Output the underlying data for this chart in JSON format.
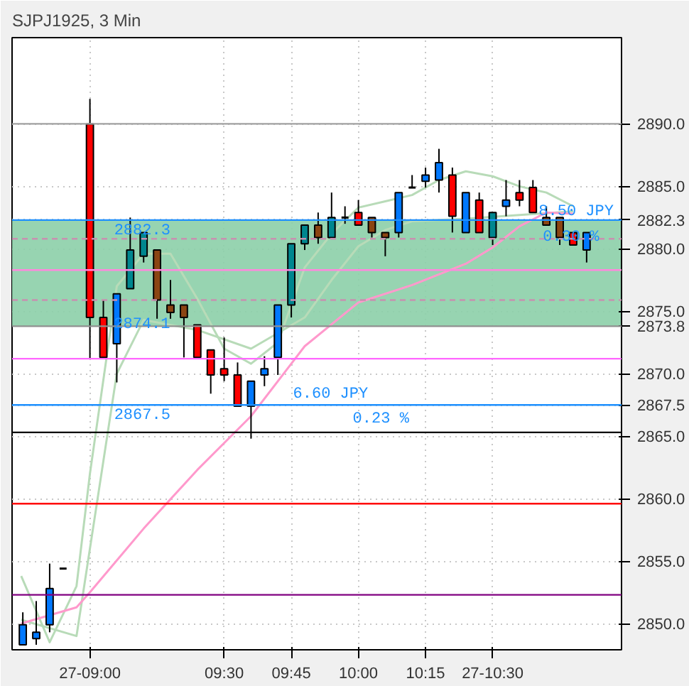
{
  "chart_data": {
    "type": "candlestick",
    "title": "SJPJ1925, 3 Min",
    "x": [
      8.75,
      8.8,
      8.85,
      8.9,
      9.0,
      9.05,
      9.1,
      9.15,
      9.2,
      9.25,
      9.3,
      9.35,
      9.4,
      9.45,
      9.5,
      9.55,
      9.6,
      9.65,
      9.7,
      9.75,
      9.8,
      9.85,
      9.9,
      9.95,
      10.0,
      10.05,
      10.1,
      10.15,
      10.2,
      10.25,
      10.3,
      10.35,
      10.4,
      10.45,
      10.5,
      10.55,
      10.6,
      10.65,
      10.7,
      10.75,
      10.8,
      10.85
    ],
    "ohlc": [
      [
        2848.3,
        2850.9,
        2848.3,
        2849.9
      ],
      [
        2848.8,
        2851.8,
        2848.3,
        2849.3
      ],
      [
        2849.9,
        2854.8,
        2849.3,
        2852.8
      ],
      [
        2854.4,
        2854.4,
        2854.4,
        2854.4
      ],
      [
        2890.0,
        2892.0,
        2871.2,
        2874.5
      ],
      [
        2874.5,
        2875.9,
        2871.2,
        2871.3
      ],
      [
        2872.4,
        2876.4,
        2869.3,
        2876.4
      ],
      [
        2876.8,
        2882.5,
        2876.8,
        2879.9
      ],
      [
        2879.4,
        2881.3,
        2878.9,
        2881.3
      ],
      [
        2879.9,
        2879.9,
        2874.4,
        2875.9
      ],
      [
        2875.5,
        2877.5,
        2874.4,
        2874.9
      ],
      [
        2875.5,
        2875.5,
        2871.3,
        2874.5
      ],
      [
        2873.9,
        2873.9,
        2871.3,
        2871.3
      ],
      [
        2871.9,
        2871.9,
        2868.4,
        2869.9
      ],
      [
        2870.4,
        2872.9,
        2869.4,
        2869.9
      ],
      [
        2869.9,
        2870.9,
        2867.4,
        2867.4
      ],
      [
        2867.4,
        2869.4,
        2864.8,
        2869.4
      ],
      [
        2869.9,
        2871.4,
        2869.0,
        2870.4
      ],
      [
        2871.3,
        2875.5,
        2869.9,
        2875.5
      ],
      [
        2875.5,
        2880.4,
        2874.5,
        2880.4
      ],
      [
        2880.4,
        2881.9,
        2879.9,
        2881.9
      ],
      [
        2881.9,
        2882.9,
        2880.4,
        2880.9
      ],
      [
        2880.9,
        2884.5,
        2880.9,
        2882.5
      ],
      [
        2882.5,
        2883.4,
        2882.0,
        2882.5
      ],
      [
        2882.9,
        2883.9,
        2881.9,
        2881.9
      ],
      [
        2882.5,
        2882.5,
        2880.9,
        2881.3
      ],
      [
        2881.3,
        2881.3,
        2879.4,
        2880.9
      ],
      [
        2881.3,
        2884.5,
        2880.9,
        2884.5
      ],
      [
        2884.9,
        2885.9,
        2884.9,
        2884.9
      ],
      [
        2885.4,
        2886.5,
        2884.9,
        2885.9
      ],
      [
        2885.5,
        2888.0,
        2884.5,
        2886.9
      ],
      [
        2885.9,
        2886.5,
        2881.3,
        2882.6
      ],
      [
        2881.3,
        2884.5,
        2881.3,
        2884.5
      ],
      [
        2883.9,
        2884.5,
        2881.3,
        2881.3
      ],
      [
        2880.9,
        2882.9,
        2880.3,
        2882.9
      ],
      [
        2883.4,
        2885.5,
        2882.6,
        2883.9
      ],
      [
        2884.5,
        2885.5,
        2883.4,
        2883.9
      ],
      [
        2884.9,
        2885.5,
        2882.9,
        2882.9
      ],
      [
        2882.5,
        2883.4,
        2881.9,
        2881.9
      ],
      [
        2882.5,
        2882.5,
        2880.3,
        2880.9
      ],
      [
        2881.3,
        2881.3,
        2880.3,
        2880.3
      ],
      [
        2879.9,
        2881.3,
        2878.9,
        2881.3
      ]
    ],
    "colors": [
      "#0078ff",
      "#0078ff",
      "#0078ff",
      "#000000",
      "#ff0000",
      "#ff0000",
      "#0078ff",
      "#00868f",
      "#00868f",
      "#8b4513",
      "#8b4513",
      "#8b4513",
      "#ff0000",
      "#ff0000",
      "#ff0000",
      "#ff0000",
      "#0078ff",
      "#0078ff",
      "#0078ff",
      "#00868f",
      "#00868f",
      "#8b4513",
      "#00868f",
      "#000000",
      "#ff0000",
      "#8b4513",
      "#8b4513",
      "#0078ff",
      "#000000",
      "#0078ff",
      "#0078ff",
      "#ff0000",
      "#0078ff",
      "#ff0000",
      "#00868f",
      "#0078ff",
      "#ff0000",
      "#ff0000",
      "#8b4513",
      "#8b4513",
      "#ff0000",
      "#0078ff"
    ],
    "series": [
      {
        "type": "line",
        "color": "#b8dbb8",
        "x": [
          8.744,
          8.85,
          8.95,
          9.0,
          9.1,
          9.2,
          9.3,
          9.4,
          9.5,
          9.6,
          9.7,
          9.8,
          9.9,
          10.0,
          10.1,
          10.2,
          10.3,
          10.4,
          10.5,
          10.6,
          10.7,
          10.8
        ],
        "values": [
          2853.8,
          2848.5,
          2853.0,
          2862.0,
          2877.0,
          2879.6,
          2879.6,
          2876.0,
          2872.0,
          2870.8,
          2872.5,
          2878.5,
          2881.2,
          2883.3,
          2883.8,
          2884.3,
          2885.5,
          2886.2,
          2885.8,
          2885.0,
          2884.5,
          2883.4
        ]
      },
      {
        "type": "line",
        "color": "#b8dbb8",
        "x": [
          8.744,
          8.95,
          9.0,
          9.1,
          9.2,
          9.4,
          9.6,
          9.8,
          9.9,
          10.0,
          10.1,
          10.2,
          10.4,
          10.6,
          10.8
        ],
        "values": [
          2850.3,
          2849.0,
          2856.0,
          2870.0,
          2874.3,
          2873.5,
          2872.0,
          2874.5,
          2877.5,
          2880.2,
          2881.5,
          2882.2,
          2882.4,
          2882.7,
          2883.0
        ]
      },
      {
        "type": "line",
        "color": "#ff99cc",
        "x": [
          8.744,
          8.95,
          9.0,
          9.2,
          9.4,
          9.6,
          9.8,
          10.0,
          10.2,
          10.4,
          10.5,
          10.6,
          10.7,
          10.8
        ],
        "values": [
          2850.0,
          2851.3,
          2852.5,
          2857.6,
          2862.3,
          2866.6,
          2872.2,
          2875.7,
          2877.1,
          2878.8,
          2880.1,
          2881.8,
          2882.9,
          2882.8
        ]
      }
    ],
    "bands": [
      {
        "axis": "y",
        "from": 2873.8,
        "to": 2882.3,
        "color": "#8ccfa8"
      }
    ],
    "ref_lines": [
      {
        "axis": "y",
        "value": 2890.0,
        "color": "#a0a0a0"
      },
      {
        "axis": "y",
        "value": 2880.8,
        "color": "#c890b0",
        "line_style": "dashed"
      },
      {
        "axis": "y",
        "value": 2878.3,
        "color": "#ff88dd"
      },
      {
        "axis": "y",
        "value": 2875.9,
        "color": "#c890b0",
        "line_style": "dashed"
      },
      {
        "axis": "y",
        "value": 2871.2,
        "color": "#ff66ff"
      },
      {
        "axis": "y",
        "value": 2865.3,
        "color": "#000000"
      },
      {
        "axis": "y",
        "value": 2859.6,
        "color": "#ff0000"
      },
      {
        "axis": "y",
        "value": 2852.3,
        "color": "#800080"
      },
      {
        "axis": "y",
        "value": 2882.3,
        "color": "#1e90ff",
        "label": "2882.3"
      },
      {
        "axis": "y",
        "value": 2873.8,
        "color": "#909090",
        "label": "2873.8"
      },
      {
        "axis": "y",
        "value": 2867.5,
        "color": "#1e90ff",
        "label": "2867.5"
      }
    ],
    "annotations": [
      {
        "text": "2882.3",
        "x": 9.09,
        "y": 2882.3
      },
      "2874.1",
      {
        "text": "2867.5",
        "x": 9.09,
        "y": 2867.5
      },
      "6.60 JPY",
      "0.23 %",
      "8.50 JPY",
      "0.30 %"
    ],
    "xlim": [
      8.71,
      10.98
    ],
    "ylim": [
      2847.9,
      2896.9
    ],
    "xticks": [
      {
        "value": 9.0,
        "label": "27-09:00"
      },
      {
        "value": 9.5,
        "label": "09:30"
      },
      {
        "value": 9.75,
        "label": "09:45"
      },
      {
        "value": 10.0,
        "label": "10:00"
      },
      {
        "value": 10.25,
        "label": "10:15"
      },
      {
        "value": 10.5,
        "label": "27-10:30"
      }
    ],
    "yticks": [
      {
        "value": 2850,
        "label": "2850.0"
      },
      {
        "value": 2855,
        "label": "2855.0"
      },
      {
        "value": 2860,
        "label": "2860.0"
      },
      {
        "value": 2865,
        "label": "2865.0"
      },
      {
        "value": 2870,
        "label": "2870.0"
      },
      {
        "value": 2875,
        "label": "2875.0"
      },
      {
        "value": 2880,
        "label": "2880.0"
      },
      {
        "value": 2885,
        "label": "2885.0"
      },
      {
        "value": 2890,
        "label": "2890.0"
      }
    ],
    "grid": true
  }
}
